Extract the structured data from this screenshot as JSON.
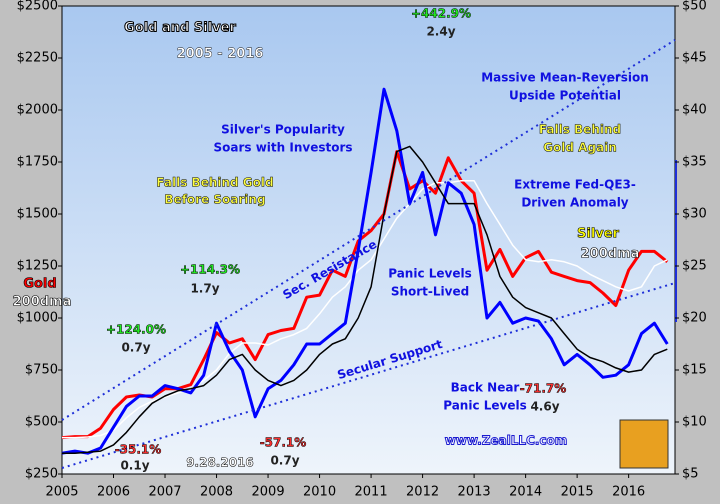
{
  "chart_data": {
    "type": "line",
    "xlim": [
      2005,
      2016.9
    ],
    "xticks": [
      2005,
      2006,
      2007,
      2008,
      2009,
      2010,
      2011,
      2012,
      2013,
      2014,
      2015,
      2016
    ],
    "ylim": [
      250,
      2500
    ],
    "yticks": [
      {
        "value": 250,
        "label": "$250"
      },
      {
        "value": 500,
        "label": "$500"
      },
      {
        "value": 750,
        "label": "$750"
      },
      {
        "value": 1000,
        "label": "$1000"
      },
      {
        "value": 1250,
        "label": "$1250"
      },
      {
        "value": 1500,
        "label": "$1500"
      },
      {
        "value": 1750,
        "label": "$1750"
      },
      {
        "value": 2000,
        "label": "$2000"
      },
      {
        "value": 2250,
        "label": "$2250"
      },
      {
        "value": 2500,
        "label": "$2500"
      }
    ],
    "y2lim": [
      5,
      50
    ],
    "y2ticks": [
      {
        "value": 5,
        "label": "$5"
      },
      {
        "value": 10,
        "label": "$10"
      },
      {
        "value": 15,
        "label": "$15"
      },
      {
        "value": 20,
        "label": "$20"
      },
      {
        "value": 25,
        "label": "$25"
      },
      {
        "value": 30,
        "label": "$30"
      },
      {
        "value": 35,
        "label": "$35"
      },
      {
        "value": 40,
        "label": "$40"
      },
      {
        "value": 45,
        "label": "$45"
      },
      {
        "value": 50,
        "label": "$50"
      }
    ],
    "x": [
      2005,
      2005.25,
      2005.5,
      2005.75,
      2006,
      2006.25,
      2006.5,
      2006.75,
      2007,
      2007.25,
      2007.5,
      2007.75,
      2008,
      2008.25,
      2008.5,
      2008.75,
      2009,
      2009.25,
      2009.5,
      2009.75,
      2010,
      2010.25,
      2010.5,
      2010.75,
      2011,
      2011.25,
      2011.5,
      2011.75,
      2012,
      2012.25,
      2012.5,
      2012.75,
      2013,
      2013.25,
      2013.5,
      2013.75,
      2014,
      2014.25,
      2014.5,
      2014.75,
      2015,
      2015.25,
      2015.5,
      2015.75,
      2016,
      2016.25,
      2016.5,
      2016.75
    ],
    "series": [
      {
        "name": "Gold",
        "color": "#ff0000",
        "values": [
          425,
          430,
          430,
          470,
          560,
          620,
          630,
          620,
          660,
          660,
          680,
          800,
          930,
          880,
          900,
          800,
          920,
          940,
          950,
          1100,
          1110,
          1230,
          1200,
          1370,
          1420,
          1500,
          1800,
          1620,
          1660,
          1600,
          1770,
          1660,
          1600,
          1230,
          1330,
          1200,
          1290,
          1320,
          1220,
          1200,
          1180,
          1170,
          1120,
          1060,
          1230,
          1320,
          1320,
          1270
        ]
      },
      {
        "name": "200dma",
        "color": "#ffffff",
        "values": [
          425,
          425,
          428,
          435,
          460,
          520,
          570,
          600,
          620,
          640,
          660,
          700,
          750,
          830,
          880,
          880,
          870,
          900,
          920,
          950,
          1020,
          1100,
          1150,
          1230,
          1280,
          1380,
          1480,
          1550,
          1620,
          1650,
          1650,
          1660,
          1660,
          1550,
          1450,
          1350,
          1280,
          1270,
          1280,
          1270,
          1250,
          1210,
          1180,
          1150,
          1130,
          1150,
          1250,
          1280
        ]
      },
      {
        "name": "Silver",
        "color": "#0000ff",
        "axis": "y2",
        "values": [
          7.0,
          7.2,
          7.0,
          7.5,
          9.5,
          11.5,
          12.5,
          12.5,
          13.5,
          13.2,
          12.8,
          14.5,
          19.5,
          16.8,
          15.0,
          10.5,
          13.2,
          14.0,
          15.5,
          17.5,
          17.5,
          18.5,
          19.5,
          26.5,
          34,
          42,
          38,
          31,
          34,
          28,
          33,
          32,
          29,
          20,
          21.5,
          19.5,
          20,
          19.7,
          18,
          15.5,
          16.5,
          15.5,
          14.3,
          14.5,
          15.5,
          18.5,
          19.5,
          17.5
        ]
      },
      {
        "name": "200dma",
        "color": "#000000",
        "axis": "y2",
        "values": [
          7.0,
          7.0,
          7.1,
          7.2,
          7.8,
          9.0,
          10.5,
          11.8,
          12.5,
          13.0,
          13.2,
          13.5,
          14.5,
          16.0,
          16.5,
          15.0,
          14.0,
          13.5,
          14.0,
          15.0,
          16.5,
          17.5,
          18.0,
          20.0,
          23.0,
          30.0,
          36.0,
          36.5,
          35.0,
          33.0,
          31.0,
          31.0,
          31.0,
          28.0,
          24.0,
          22.0,
          21.0,
          20.5,
          20.0,
          18.5,
          17.0,
          16.2,
          15.8,
          15.2,
          14.8,
          15.0,
          16.5,
          17.0
        ]
      }
    ],
    "title": "Gold and Silver",
    "subtitle": "2005 - 2016",
    "annotations": [
      "+442.9%",
      "2.4y",
      "Massive Mean-Reversion",
      "Upside Potential",
      "Silver's Popularity",
      "Soars with Investors",
      "Falls Behind",
      "Gold Again",
      "Extreme Fed-QE3-",
      "Driven Anomaly",
      "Falls Behind Gold",
      "Before Soaring",
      "+114.3%",
      "1.7y",
      "Sec. Resistance",
      "Panic Levels",
      "Short-Lived",
      "+124.0%",
      "0.7y",
      "Secular Support",
      "Back Near",
      "Panic Levels",
      "-71.7%",
      "4.6y",
      "-35.1%",
      "0.1y",
      "-57.1%",
      "0.7y",
      "www.ZealLLC.com",
      "9.28.2016"
    ]
  }
}
